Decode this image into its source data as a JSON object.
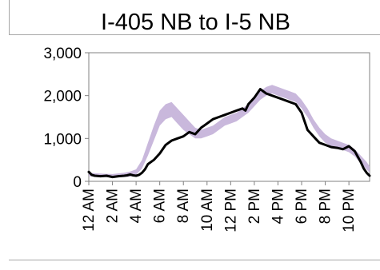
{
  "chart_data": {
    "type": "line",
    "title": "I-405 NB to I-5 NB",
    "xlabel": "",
    "ylabel": "",
    "ylim": [
      0,
      3000
    ],
    "xlim": [
      0,
      23.75
    ],
    "yticks": [
      "3,000",
      "2,000",
      "1,000",
      "0"
    ],
    "xticks": [
      "12 AM",
      "2 AM",
      "4 AM",
      "6 AM",
      "8 AM",
      "10 AM",
      "12 PM",
      "2 PM",
      "4 PM",
      "6 PM",
      "8 PM",
      "10 PM"
    ],
    "grid": false,
    "legend": "none",
    "colors": {
      "series": "#000000",
      "band": "#c9b8dc",
      "frame": "#a6a6a6"
    },
    "series": [
      {
        "x": [
          0,
          0.25,
          0.5,
          1,
          1.5,
          2,
          2.5,
          3,
          3.25,
          3.5,
          3.75,
          4,
          4.25,
          4.5,
          4.75,
          5,
          5.5,
          6,
          6.5,
          7,
          7.5,
          8,
          8.5,
          9,
          9.5,
          10,
          10.5,
          11,
          11.5,
          12,
          12.5,
          13,
          13.25,
          13.5,
          14,
          14.5,
          15,
          15.5,
          16,
          16.5,
          17,
          17.5,
          18,
          18.5,
          19,
          19.5,
          20,
          20.5,
          21,
          21.5,
          22,
          22.5,
          23,
          23.25,
          23.5,
          23.75
        ],
        "y": [
          220,
          150,
          130,
          120,
          130,
          100,
          120,
          130,
          140,
          160,
          140,
          130,
          150,
          200,
          280,
          400,
          500,
          650,
          850,
          950,
          1000,
          1050,
          1150,
          1100,
          1250,
          1350,
          1450,
          1500,
          1550,
          1600,
          1650,
          1700,
          1650,
          1800,
          1950,
          2150,
          2050,
          2000,
          1950,
          1900,
          1850,
          1800,
          1600,
          1200,
          1050,
          900,
          850,
          800,
          780,
          750,
          820,
          700,
          450,
          300,
          200,
          130
        ]
      }
    ],
    "band": {
      "x": [
        0,
        1,
        2,
        3,
        3.5,
        4,
        4.5,
        5,
        5.5,
        6,
        6.5,
        7,
        7.5,
        8,
        8.5,
        9,
        9.5,
        10,
        10.5,
        11,
        11.5,
        12,
        12.5,
        13,
        13.5,
        14,
        14.5,
        15,
        15.5,
        16,
        16.5,
        17,
        17.5,
        18,
        18.5,
        19,
        19.5,
        20,
        20.5,
        21,
        21.5,
        22,
        22.5,
        23,
        23.5,
        23.75
      ],
      "upper": [
        200,
        180,
        170,
        200,
        230,
        280,
        500,
        900,
        1300,
        1650,
        1800,
        1850,
        1700,
        1550,
        1400,
        1250,
        1200,
        1250,
        1300,
        1400,
        1500,
        1550,
        1600,
        1700,
        1800,
        1950,
        2100,
        2200,
        2250,
        2200,
        2150,
        2100,
        2050,
        1900,
        1700,
        1450,
        1250,
        1100,
        1000,
        950,
        900,
        850,
        750,
        600,
        450,
        350
      ],
      "lower": [
        120,
        100,
        90,
        100,
        110,
        150,
        300,
        600,
        950,
        1300,
        1450,
        1500,
        1350,
        1200,
        1100,
        1000,
        1000,
        1050,
        1100,
        1200,
        1300,
        1350,
        1400,
        1500,
        1600,
        1750,
        1900,
        2000,
        2050,
        2000,
        1950,
        1900,
        1850,
        1700,
        1500,
        1250,
        1050,
        900,
        820,
        780,
        730,
        680,
        580,
        420,
        280,
        200
      ]
    }
  }
}
